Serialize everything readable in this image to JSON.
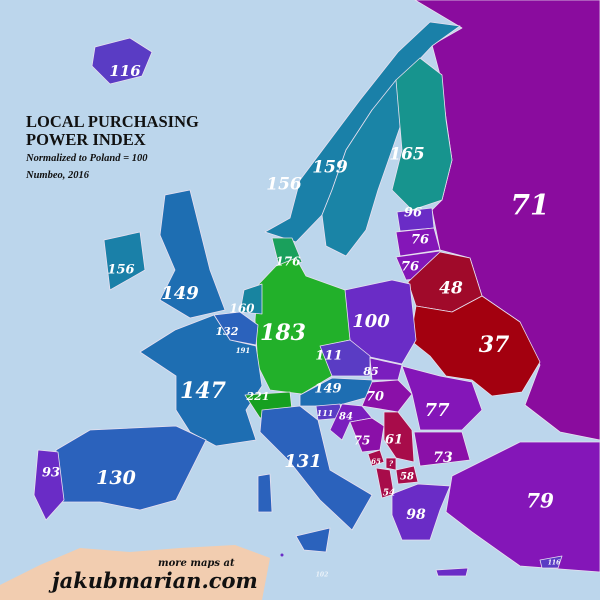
{
  "title_line1": "LOCAL PURCHASING",
  "title_line2": "POWER INDEX",
  "subtitle": "Normalized to Poland = 100",
  "source": "Numbeo, 2016",
  "footer": {
    "more": "more maps at",
    "site": "jakubmarian.com"
  },
  "colors": {
    "sea": "#bcd6ec",
    "africa": "#f2cdb0",
    "highest": "#1fae2a",
    "lowest": "#a3000f"
  },
  "regions": {
    "iceland": {
      "value": "116",
      "color": "#5a3cc4"
    },
    "norway": {
      "value": "156",
      "color": "#1a80a8"
    },
    "sweden": {
      "value": "159",
      "color": "#1a84a6"
    },
    "finland": {
      "value": "165",
      "color": "#17948e"
    },
    "russia": {
      "value": "71",
      "color": "#8a0c9e"
    },
    "estonia": {
      "value": "96",
      "color": "#6a2cc6"
    },
    "latvia": {
      "value": "76",
      "color": "#8416b8"
    },
    "lithuania": {
      "value": "76",
      "color": "#8416b8"
    },
    "belarus": {
      "value": "48",
      "color": "#a00a2a"
    },
    "ukraine": {
      "value": "37",
      "color": "#a3000f"
    },
    "poland": {
      "value": "100",
      "color": "#6a2cc6"
    },
    "germany": {
      "value": "183",
      "color": "#22b02a"
    },
    "denmark": {
      "value": "176",
      "color": "#1aa05c"
    },
    "netherlands": {
      "value": "160",
      "color": "#1884a0"
    },
    "belgium": {
      "value": "132",
      "color": "#2b62bc"
    },
    "luxembourg": {
      "value": "191",
      "color": "#1fae2a"
    },
    "france": {
      "value": "147",
      "color": "#1e6eb2"
    },
    "uk": {
      "value": "149",
      "color": "#1e6eb2"
    },
    "ireland": {
      "value": "156",
      "color": "#1a80a8"
    },
    "spain": {
      "value": "130",
      "color": "#2b62bc"
    },
    "portugal": {
      "value": "93",
      "color": "#6a2cc6"
    },
    "switzerland": {
      "value": "221",
      "color": "#16a020"
    },
    "austria": {
      "value": "149",
      "color": "#1e6eb2"
    },
    "czechia": {
      "value": "111",
      "color": "#5a3cc4"
    },
    "slovakia": {
      "value": "85",
      "color": "#7a1ebe"
    },
    "hungary": {
      "value": "70",
      "color": "#8a10a8"
    },
    "slovenia": {
      "value": "111",
      "color": "#5a3cc4"
    },
    "croatia": {
      "value": "84",
      "color": "#7a1ebe"
    },
    "italy": {
      "value": "131",
      "color": "#2b62bc"
    },
    "bosnia": {
      "value": "75",
      "color": "#8a10a8"
    },
    "serbia": {
      "value": "61",
      "color": "#a80c4a"
    },
    "montenegro": {
      "value": "65",
      "color": "#a80c4a"
    },
    "kosovo": {
      "value": "?",
      "color": "#a80c4a"
    },
    "macedonia": {
      "value": "58",
      "color": "#a80c4a"
    },
    "albania": {
      "value": "54",
      "color": "#a80c4a"
    },
    "romania": {
      "value": "77",
      "color": "#8416b8"
    },
    "bulgaria": {
      "value": "73",
      "color": "#8a10a8"
    },
    "greece": {
      "value": "98",
      "color": "#6a2cc6"
    },
    "turkey": {
      "value": "79",
      "color": "#8416b8"
    },
    "malta": {
      "value": "102",
      "color": "#6a2cc6"
    },
    "cyprus": {
      "value": "116",
      "color": "#5a3cc4"
    }
  }
}
